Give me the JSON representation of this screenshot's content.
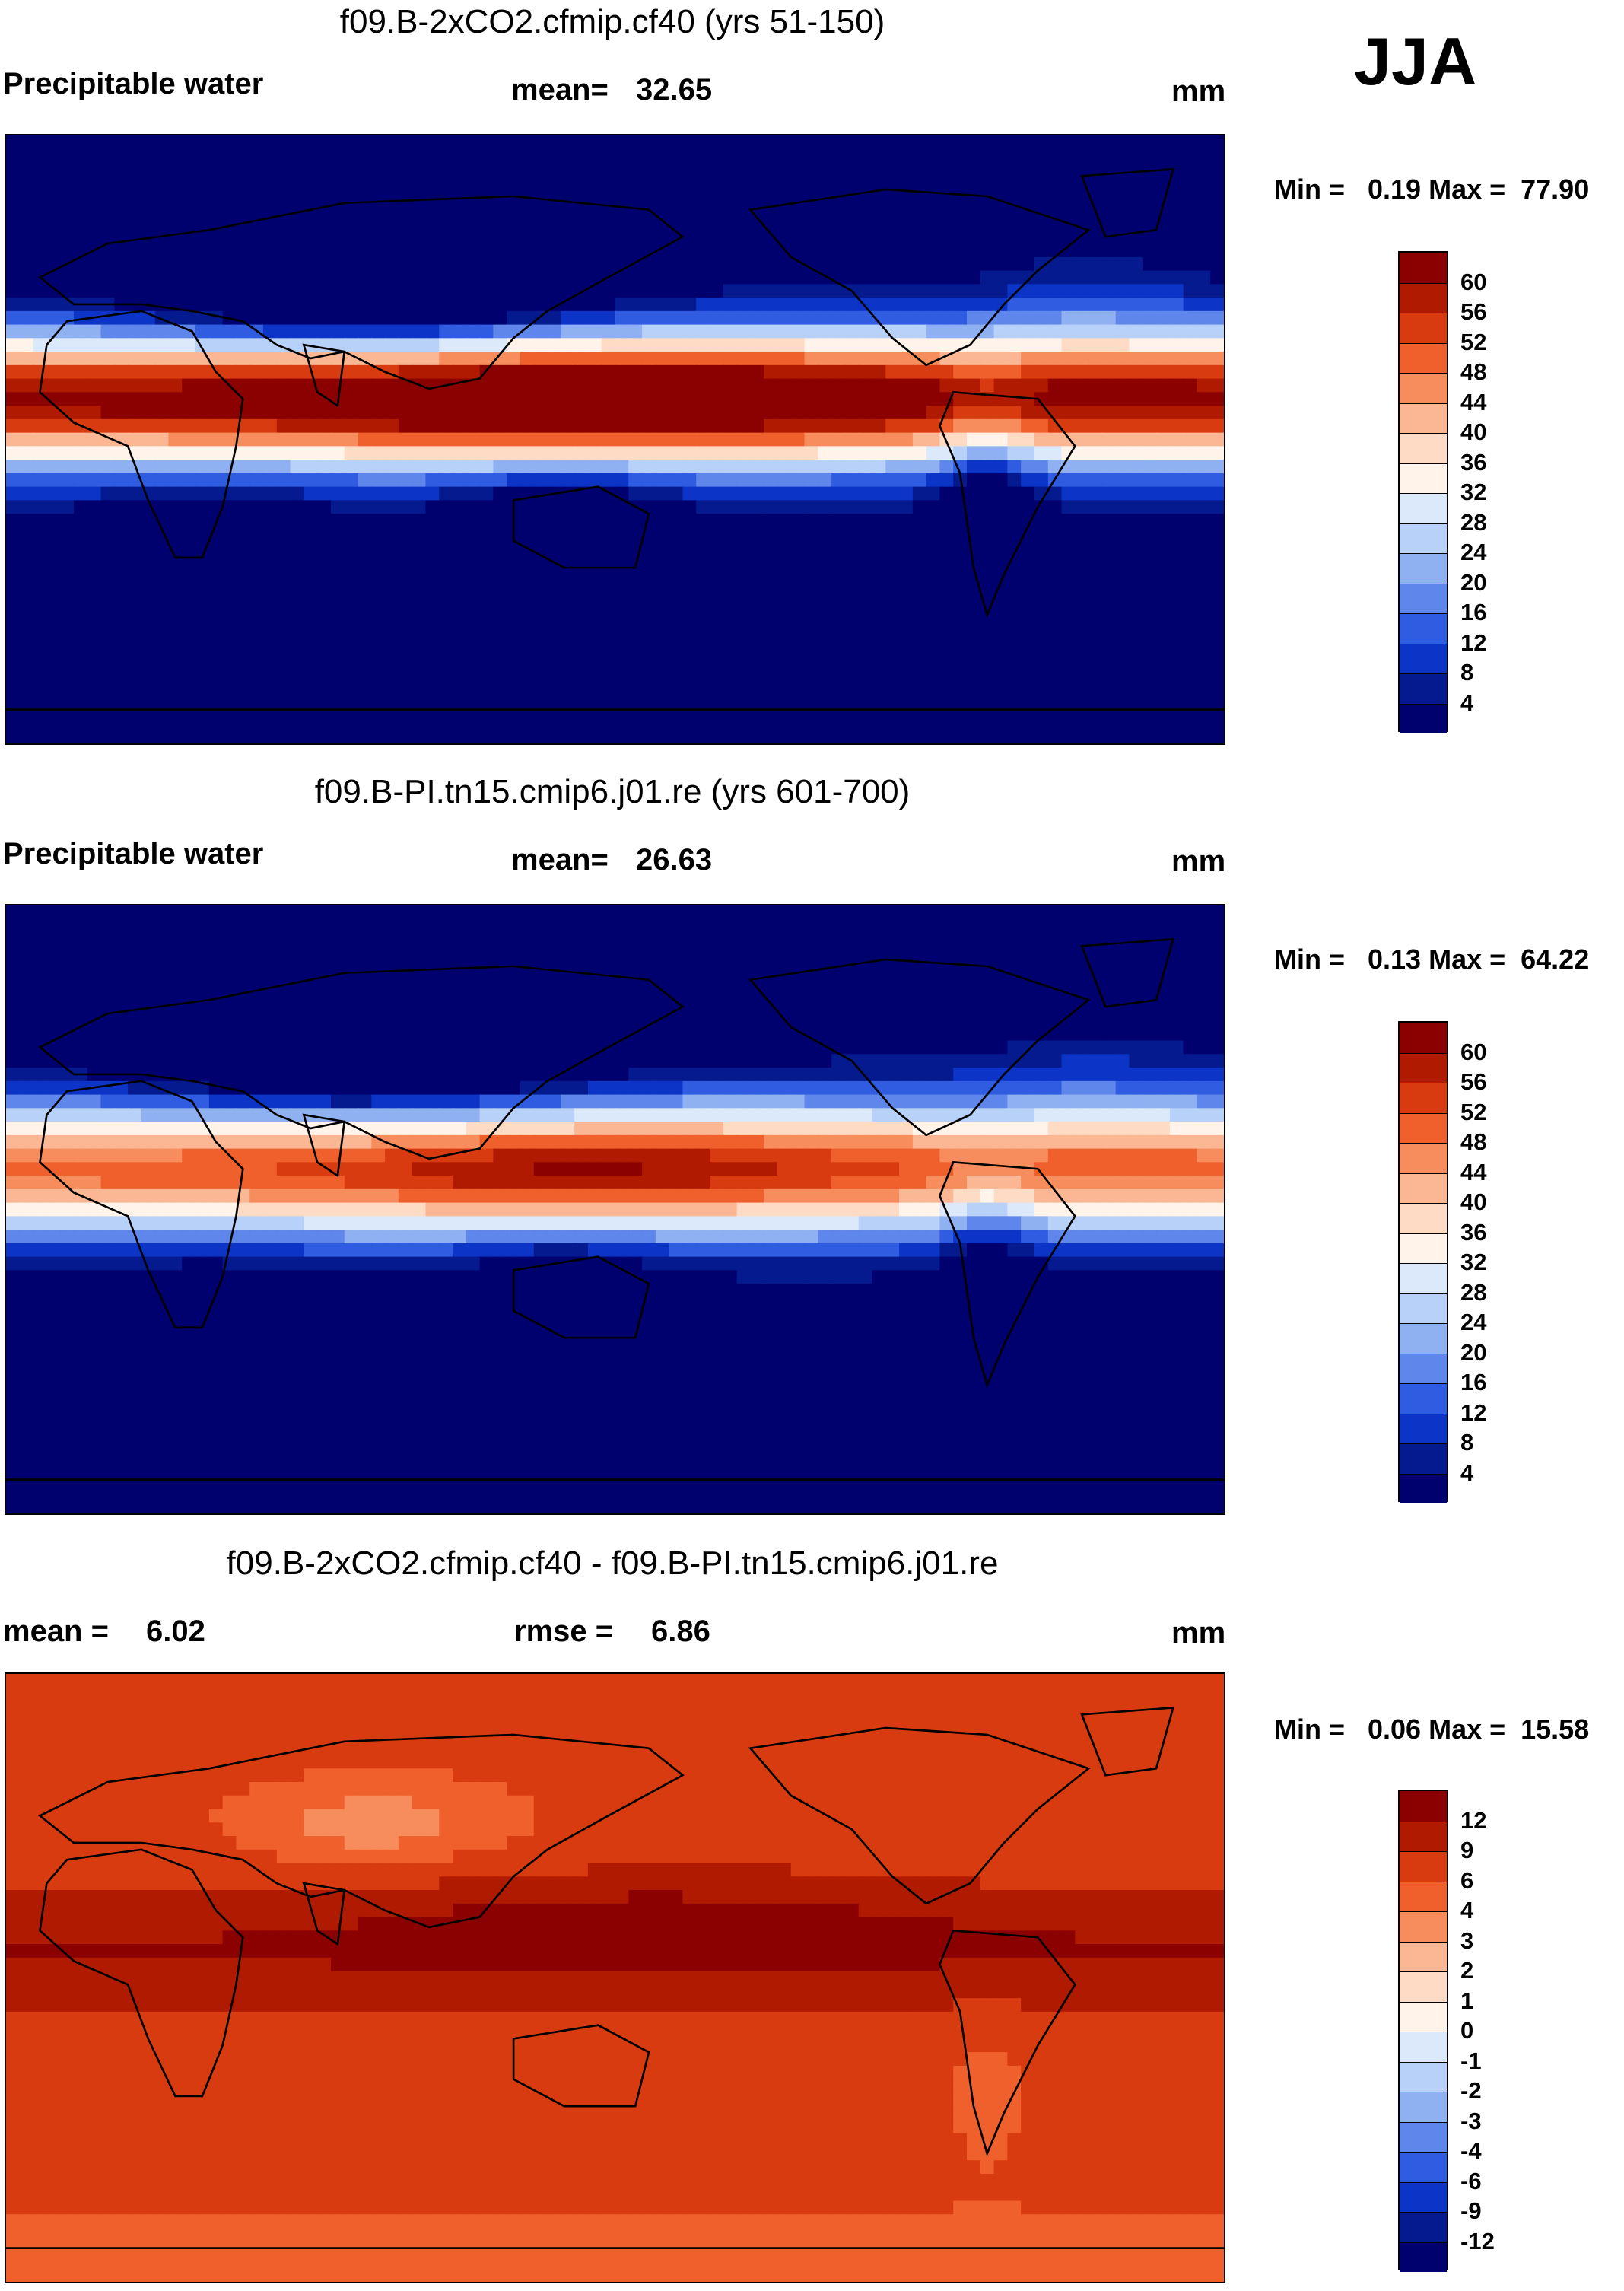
{
  "season": "JJA",
  "units": "mm",
  "panels": [
    {
      "title": "f09.B-2xCO2.cfmip.cf40 (yrs 51-150)",
      "variable": "Precipitable water",
      "stat_label": "mean=",
      "stat_value": "32.65",
      "minmax": "Min =   0.19 Max =  77.90",
      "colorbar": {
        "labels": [
          "60",
          "56",
          "52",
          "48",
          "44",
          "40",
          "36",
          "32",
          "28",
          "24",
          "20",
          "16",
          "12",
          "8",
          "4"
        ],
        "colors": [
          "#8b0000",
          "#b01a00",
          "#d93b10",
          "#f0602d",
          "#f78c5c",
          "#fbb694",
          "#fddbc4",
          "#fff3ea",
          "#dbe9fb",
          "#b8d1f8",
          "#8fb1f2",
          "#5f86ea",
          "#2f5ce0",
          "#0c34c6",
          "#041a8e",
          "#00006e"
        ]
      },
      "map": {
        "kind": "base",
        "scale": 1.0
      }
    },
    {
      "title": "f09.B-PI.tn15.cmip6.j01.re (yrs 601-700)",
      "variable": "Precipitable water",
      "stat_label": "mean=",
      "stat_value": "26.63",
      "minmax": "Min =   0.13 Max =  64.22",
      "colorbar": {
        "labels": [
          "60",
          "56",
          "52",
          "48",
          "44",
          "40",
          "36",
          "32",
          "28",
          "24",
          "20",
          "16",
          "12",
          "8",
          "4"
        ],
        "colors": [
          "#8b0000",
          "#b01a00",
          "#d93b10",
          "#f0602d",
          "#f78c5c",
          "#fbb694",
          "#fddbc4",
          "#fff3ea",
          "#dbe9fb",
          "#b8d1f8",
          "#8fb1f2",
          "#5f86ea",
          "#2f5ce0",
          "#0c34c6",
          "#041a8e",
          "#00006e"
        ]
      },
      "map": {
        "kind": "base",
        "scale": 0.8
      }
    },
    {
      "title": "f09.B-2xCO2.cfmip.cf40 - f09.B-PI.tn15.cmip6.j01.re",
      "stat_label": "mean =",
      "stat_value": "6.02",
      "rmse_label": "rmse =",
      "rmse_value": "6.86",
      "minmax": "Min =   0.06 Max =  15.58",
      "colorbar": {
        "labels": [
          "12",
          "9",
          "6",
          "4",
          "3",
          "2",
          "1",
          "0",
          "-1",
          "-2",
          "-3",
          "-4",
          "-6",
          "-9",
          "-12"
        ],
        "colors": [
          "#8b0000",
          "#b01a00",
          "#d93b10",
          "#f0602d",
          "#f78c5c",
          "#fbb694",
          "#fddbc4",
          "#fff3ea",
          "#dbe9fb",
          "#b8d1f8",
          "#8fb1f2",
          "#5f86ea",
          "#2f5ce0",
          "#0c34c6",
          "#041a8e",
          "#00006e"
        ]
      },
      "map": {
        "kind": "diff",
        "scale": 1.0
      }
    }
  ]
}
